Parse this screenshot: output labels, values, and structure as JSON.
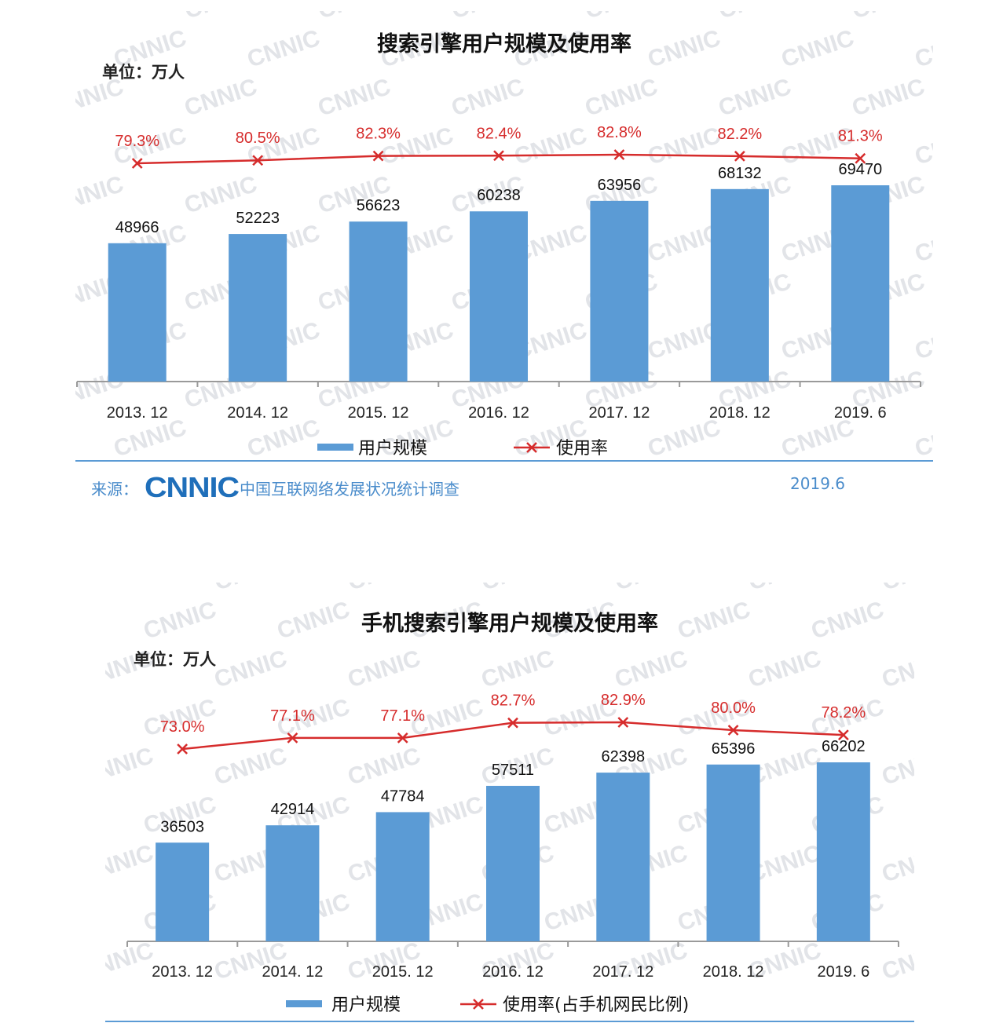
{
  "chart_data": [
    {
      "type": "bar",
      "title": "搜索引擎用户规模及使用率",
      "unit_label": "单位：万人",
      "categories": [
        "2013. 12",
        "2014. 12",
        "2015. 12",
        "2016. 12",
        "2017. 12",
        "2018. 12",
        "2019. 6"
      ],
      "series": [
        {
          "name": "用户规模",
          "kind": "bar",
          "values": [
            48966,
            52223,
            56623,
            60238,
            63956,
            68132,
            69470
          ],
          "labels": [
            "48966",
            "52223",
            "56623",
            "60238",
            "63956",
            "68132",
            "69470"
          ],
          "color": "#5b9bd5"
        },
        {
          "name": "使用率",
          "kind": "line",
          "values": [
            79.3,
            80.5,
            82.3,
            82.4,
            82.8,
            82.2,
            81.3
          ],
          "labels": [
            "79.3%",
            "80.5%",
            "82.3%",
            "82.4%",
            "82.8%",
            "82.2%",
            "81.3%"
          ],
          "color": "#d62c2c"
        }
      ],
      "legend": [
        "用户规模",
        "使用率"
      ],
      "ylim_bar": [
        0,
        80000
      ],
      "ylim_line": [
        0,
        100
      ]
    },
    {
      "type": "bar",
      "title": "手机搜索引擎用户规模及使用率",
      "unit_label": "单位：万人",
      "categories": [
        "2013. 12",
        "2014. 12",
        "2015. 12",
        "2016. 12",
        "2017. 12",
        "2018. 12",
        "2019. 6"
      ],
      "series": [
        {
          "name": "用户规模",
          "kind": "bar",
          "values": [
            36503,
            42914,
            47784,
            57511,
            62398,
            65396,
            66202
          ],
          "labels": [
            "36503",
            "42914",
            "47784",
            "57511",
            "62398",
            "65396",
            "66202"
          ],
          "color": "#5b9bd5"
        },
        {
          "name": "使用率（占手机网民比例）",
          "kind": "line",
          "values": [
            73.0,
            77.1,
            77.1,
            82.7,
            82.9,
            80.0,
            78.2
          ],
          "labels": [
            "73.0%",
            "77.1%",
            "77.1%",
            "82.7%",
            "82.9%",
            "80.0%",
            "78.2%"
          ],
          "color": "#d62c2c"
        }
      ],
      "legend": [
        "用户规模",
        "使用率(占手机网民比例)"
      ],
      "ylim_bar": [
        0,
        80000
      ],
      "ylim_line": [
        0,
        100
      ]
    }
  ],
  "source": {
    "label": "来源：",
    "logo_text": "CNNIC",
    "name": "中国互联网络发展状况统计调查",
    "date": "2019.6"
  },
  "watermark_text": "CNNIC"
}
